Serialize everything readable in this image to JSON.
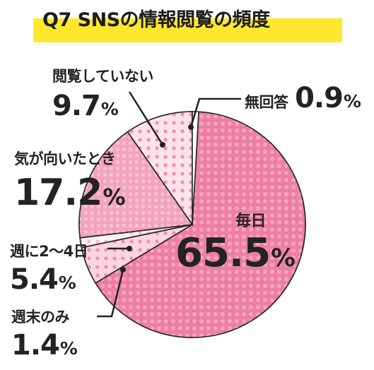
{
  "title": "Q7 SNSの情報閲覧の頻度",
  "colors": {
    "daily": "#ec7fa2",
    "occasional": "#f3a3bd",
    "weekly2to4": "#fbd5e1",
    "weekly1": "#fdf0f4",
    "browsing_none": "#fde3ec",
    "noanswer": "#ffffff",
    "highlight": "#ffe82b"
  },
  "chart_data": {
    "type": "pie",
    "title": "Q7 SNSの情報閲覧の頻度",
    "slices": [
      {
        "label": "毎日",
        "value": 65.5,
        "value_label": "65.5%",
        "color": "#ec7fa2"
      },
      {
        "label": "週に2〜4日",
        "value": 5.4,
        "value_label": "5.4%",
        "color": "#fbd5e1"
      },
      {
        "label": "週末のみ",
        "value": 1.4,
        "value_label": "1.4%",
        "color": "#fdf0f4"
      },
      {
        "label": "気が向いたとき",
        "value": 17.2,
        "value_label": "17.2%",
        "color": "#f3a3bd"
      },
      {
        "label": "閲覧していない",
        "value": 9.7,
        "value_label": "9.7%",
        "color": "#fde3ec"
      },
      {
        "label": "無回答",
        "value": 0.9,
        "value_label": "0.9%",
        "color": "#ffffff"
      }
    ]
  }
}
